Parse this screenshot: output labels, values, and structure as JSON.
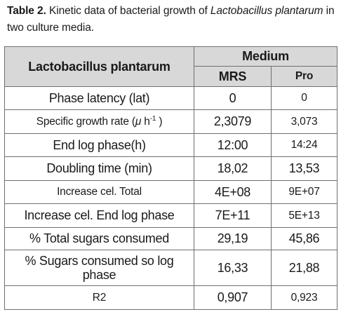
{
  "caption": {
    "label": "Table 2.",
    "text_before": " Kinetic data of bacterial growth of ",
    "species_italic": "Lactobacillus plantarum",
    "text_after": " in two culture media."
  },
  "table": {
    "row_header_title": "Lactobacillus plantarum",
    "group_header": "Medium",
    "columns": [
      "MRS",
      "Pro"
    ],
    "rows": [
      {
        "label": "Phase latency (lat)",
        "mrs": "0",
        "pro": "0"
      },
      {
        "label_prefix": "Specific growth rate (",
        "label_mu": "μ",
        "label_unit": " h",
        "label_sup": "-1",
        "label_suffix": " )",
        "mrs": "2,3079",
        "pro": "3,073"
      },
      {
        "label": "End log phase(h)",
        "mrs": "12:00",
        "pro": "14:24"
      },
      {
        "label": "Doubling time (min)",
        "mrs": "18,02",
        "pro": "13,53"
      },
      {
        "label": "Increase cel. Total",
        "mrs": "4E+08",
        "pro": "9E+07"
      },
      {
        "label": "Increase cel. End log phase",
        "mrs": "7E+11",
        "pro": "5E+13"
      },
      {
        "label": "% Total sugars consumed",
        "mrs": "29,19",
        "pro": "45,86"
      },
      {
        "label": "% Sugars consumed so log phase",
        "mrs": "16,33",
        "pro": "21,88"
      },
      {
        "label": "R2",
        "mrs": "0,907",
        "pro": "0,923"
      }
    ]
  }
}
